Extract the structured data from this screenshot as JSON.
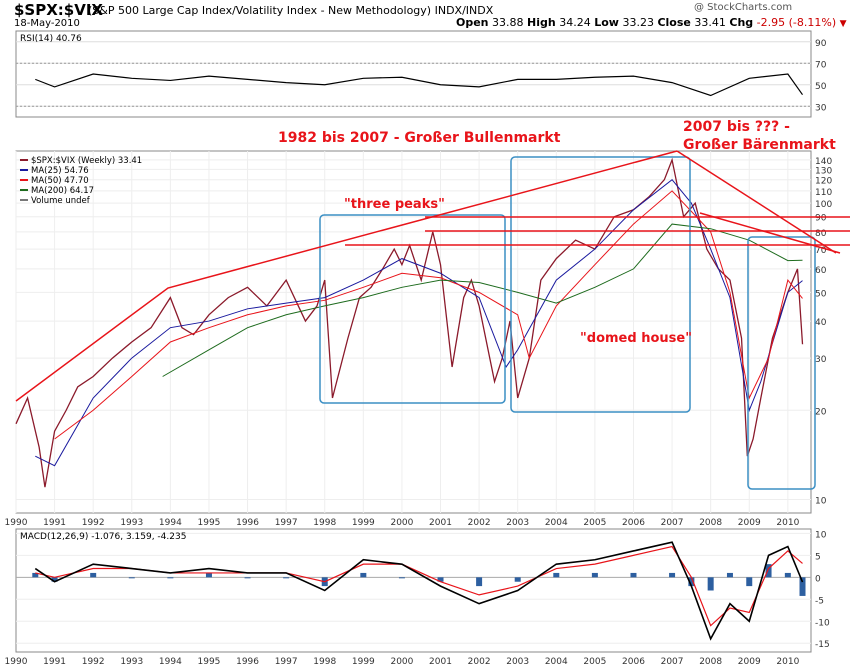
{
  "header": {
    "symbol": "$SPX:$VIX",
    "description": "(S&P 500 Large Cap Index/Volatility Index - New Methodology) INDX/INDX",
    "date": "18-May-2010",
    "copyright": "@ StockCharts.com",
    "open_label": "Open",
    "open": "33.88",
    "high_label": "High",
    "high": "34.24",
    "low_label": "Low",
    "low": "33.23",
    "close_label": "Close",
    "close": "33.41",
    "chg_label": "Chg",
    "chg": "-2.95 (-8.11%)"
  },
  "colors": {
    "price": "#8b1a2b",
    "ma25": "#1a1a9e",
    "ma50": "#e8141a",
    "ma200": "#1e6b1e",
    "annot": "#e8141a",
    "box": "#3b8fc4",
    "macd_hist": "#2d5fa0"
  },
  "chart_data": [
    {
      "type": "line",
      "name": "RSI panel",
      "title": "RSI(14) 40.76",
      "y_ticks": [
        30,
        50,
        70,
        90
      ],
      "ylim": [
        20,
        100
      ],
      "reference_lines": [
        30,
        70
      ],
      "x": [
        1990.5,
        1991,
        1992,
        1993,
        1994,
        1995,
        1996,
        1997,
        1998,
        1999,
        2000,
        2001,
        2002,
        2003,
        2004,
        2005,
        2006,
        2007,
        2008,
        2009,
        2010,
        2010.38
      ],
      "values": [
        55,
        48,
        60,
        56,
        54,
        58,
        55,
        52,
        50,
        56,
        57,
        50,
        48,
        55,
        55,
        57,
        58,
        52,
        40,
        56,
        60,
        40.76
      ]
    },
    {
      "type": "line",
      "name": "Price panel",
      "scale": "log",
      "y_ticks": [
        10,
        20,
        30,
        40,
        50,
        60,
        70,
        80,
        90,
        100,
        110,
        120,
        130,
        140
      ],
      "ylim": [
        9,
        150
      ],
      "x_ticks": [
        "1990",
        "1991",
        "1992",
        "1993",
        "1994",
        "1995",
        "1996",
        "1997",
        "1998",
        "1999",
        "2000",
        "2001",
        "2002",
        "2003",
        "2004",
        "2005",
        "2006",
        "2007",
        "2008",
        "2009",
        "2010"
      ],
      "legend": [
        {
          "label": "$SPX:$VIX (Weekly) 33.41",
          "color": "#8b1a2b"
        },
        {
          "label": "MA(25) 54.76",
          "color": "#1a1a9e"
        },
        {
          "label": "MA(50) 47.70",
          "color": "#e8141a"
        },
        {
          "label": "MA(200) 64.17",
          "color": "#1e6b1e"
        },
        {
          "label": "Volume undef",
          "color": "#777777"
        }
      ],
      "series": [
        {
          "name": "$SPX:$VIX",
          "x": [
            1990,
            1990.3,
            1990.6,
            1990.75,
            1991,
            1991.3,
            1991.6,
            1992,
            1992.5,
            1993,
            1993.5,
            1994,
            1994.3,
            1994.6,
            1995,
            1995.5,
            1996,
            1996.5,
            1997,
            1997.5,
            1997.8,
            1998,
            1998.2,
            1998.6,
            1998.9,
            1999.2,
            1999.5,
            1999.8,
            2000,
            2000.2,
            2000.5,
            2000.8,
            2001,
            2001.3,
            2001.6,
            2001.8,
            2002,
            2002.4,
            2002.6,
            2002.8,
            2003,
            2003.3,
            2003.6,
            2004,
            2004.5,
            2005,
            2005.5,
            2006,
            2006.4,
            2006.8,
            2007,
            2007.3,
            2007.6,
            2007.9,
            2008.2,
            2008.5,
            2008.8,
            2008.95,
            2009.1,
            2009.3,
            2009.6,
            2010,
            2010.25,
            2010.38
          ],
          "values": [
            18,
            22,
            15,
            11,
            17,
            20,
            24,
            26,
            30,
            34,
            38,
            48,
            38,
            36,
            42,
            48,
            52,
            45,
            55,
            40,
            45,
            55,
            22,
            35,
            48,
            52,
            60,
            70,
            62,
            72,
            55,
            80,
            62,
            28,
            48,
            55,
            45,
            25,
            30,
            40,
            22,
            30,
            55,
            65,
            75,
            70,
            90,
            95,
            105,
            120,
            140,
            90,
            100,
            70,
            60,
            55,
            35,
            14,
            16,
            22,
            35,
            50,
            60,
            33.41
          ]
        },
        {
          "name": "MA(25)",
          "x": [
            1990.5,
            1991,
            1992,
            1993,
            1994,
            1995,
            1996,
            1997,
            1998,
            1999,
            2000,
            2001,
            2002,
            2002.7,
            2003,
            2004,
            2005,
            2006,
            2007,
            2007.5,
            2008,
            2008.5,
            2009,
            2009.3,
            2010,
            2010.38
          ],
          "values": [
            14,
            13,
            22,
            30,
            38,
            40,
            44,
            46,
            48,
            55,
            65,
            58,
            48,
            28,
            32,
            55,
            70,
            95,
            120,
            100,
            70,
            48,
            20,
            25,
            50,
            54.76
          ]
        },
        {
          "name": "MA(50)",
          "x": [
            1991,
            1992,
            1993,
            1994,
            1995,
            1996,
            1997,
            1998,
            1999,
            2000,
            2001,
            2002,
            2003,
            2003.3,
            2004,
            2005,
            2006,
            2007,
            2008,
            2008.5,
            2009,
            2009.5,
            2010,
            2010.38
          ],
          "values": [
            16,
            20,
            26,
            34,
            38,
            42,
            45,
            47,
            52,
            58,
            56,
            50,
            42,
            30,
            45,
            62,
            85,
            110,
            80,
            50,
            22,
            30,
            55,
            47.7
          ]
        },
        {
          "name": "MA(200)",
          "x": [
            1993.8,
            1995,
            1996,
            1997,
            1998,
            1999,
            2000,
            2001,
            2002,
            2003,
            2004,
            2005,
            2006,
            2007,
            2008,
            2009,
            2010,
            2010.38
          ],
          "values": [
            26,
            32,
            38,
            42,
            45,
            48,
            52,
            55,
            54,
            50,
            46,
            52,
            60,
            85,
            82,
            75,
            64,
            64.17
          ]
        }
      ]
    },
    {
      "type": "line",
      "name": "MACD panel",
      "title": "MACD(12,26,9) -1.076, 3.159, -4.235",
      "y_ticks": [
        -15,
        -10,
        -5,
        0,
        5,
        10
      ],
      "ylim": [
        -17,
        11
      ],
      "series": [
        {
          "name": "MACD",
          "x": [
            1990.5,
            1991,
            1992,
            1993,
            1994,
            1995,
            1996,
            1997,
            1998,
            1999,
            2000,
            2001,
            2002,
            2003,
            2004,
            2005,
            2006,
            2007,
            2007.5,
            2008,
            2008.5,
            2009,
            2009.5,
            2010,
            2010.38
          ],
          "values": [
            2,
            -1,
            3,
            2,
            1,
            2,
            1,
            1,
            -3,
            4,
            3,
            -2,
            -6,
            -3,
            3,
            4,
            6,
            8,
            -2,
            -14,
            -6,
            -10,
            5,
            7,
            -1.076
          ]
        },
        {
          "name": "Signal",
          "x": [
            1990.5,
            1991,
            1992,
            1993,
            1994,
            1995,
            1996,
            1997,
            1998,
            1999,
            2000,
            2001,
            2002,
            2003,
            2004,
            2005,
            2006,
            2007,
            2007.5,
            2008,
            2008.5,
            2009,
            2009.5,
            2010,
            2010.38
          ],
          "values": [
            1,
            0,
            2,
            2,
            1,
            1,
            1,
            1,
            -1,
            3,
            3,
            -1,
            -4,
            -2,
            2,
            3,
            5,
            7,
            0,
            -11,
            -7,
            -8,
            2,
            6,
            3.159
          ]
        }
      ]
    }
  ],
  "annotations": {
    "bullmarket": "1982 bis 2007 - Großer Bullenmarkt",
    "bearmarket_line1": "2007 bis ??? -",
    "bearmarket_line2": "Großer Bärenmarkt",
    "three_peaks": "\"three peaks\"",
    "domed_house": "\"domed   house\""
  }
}
